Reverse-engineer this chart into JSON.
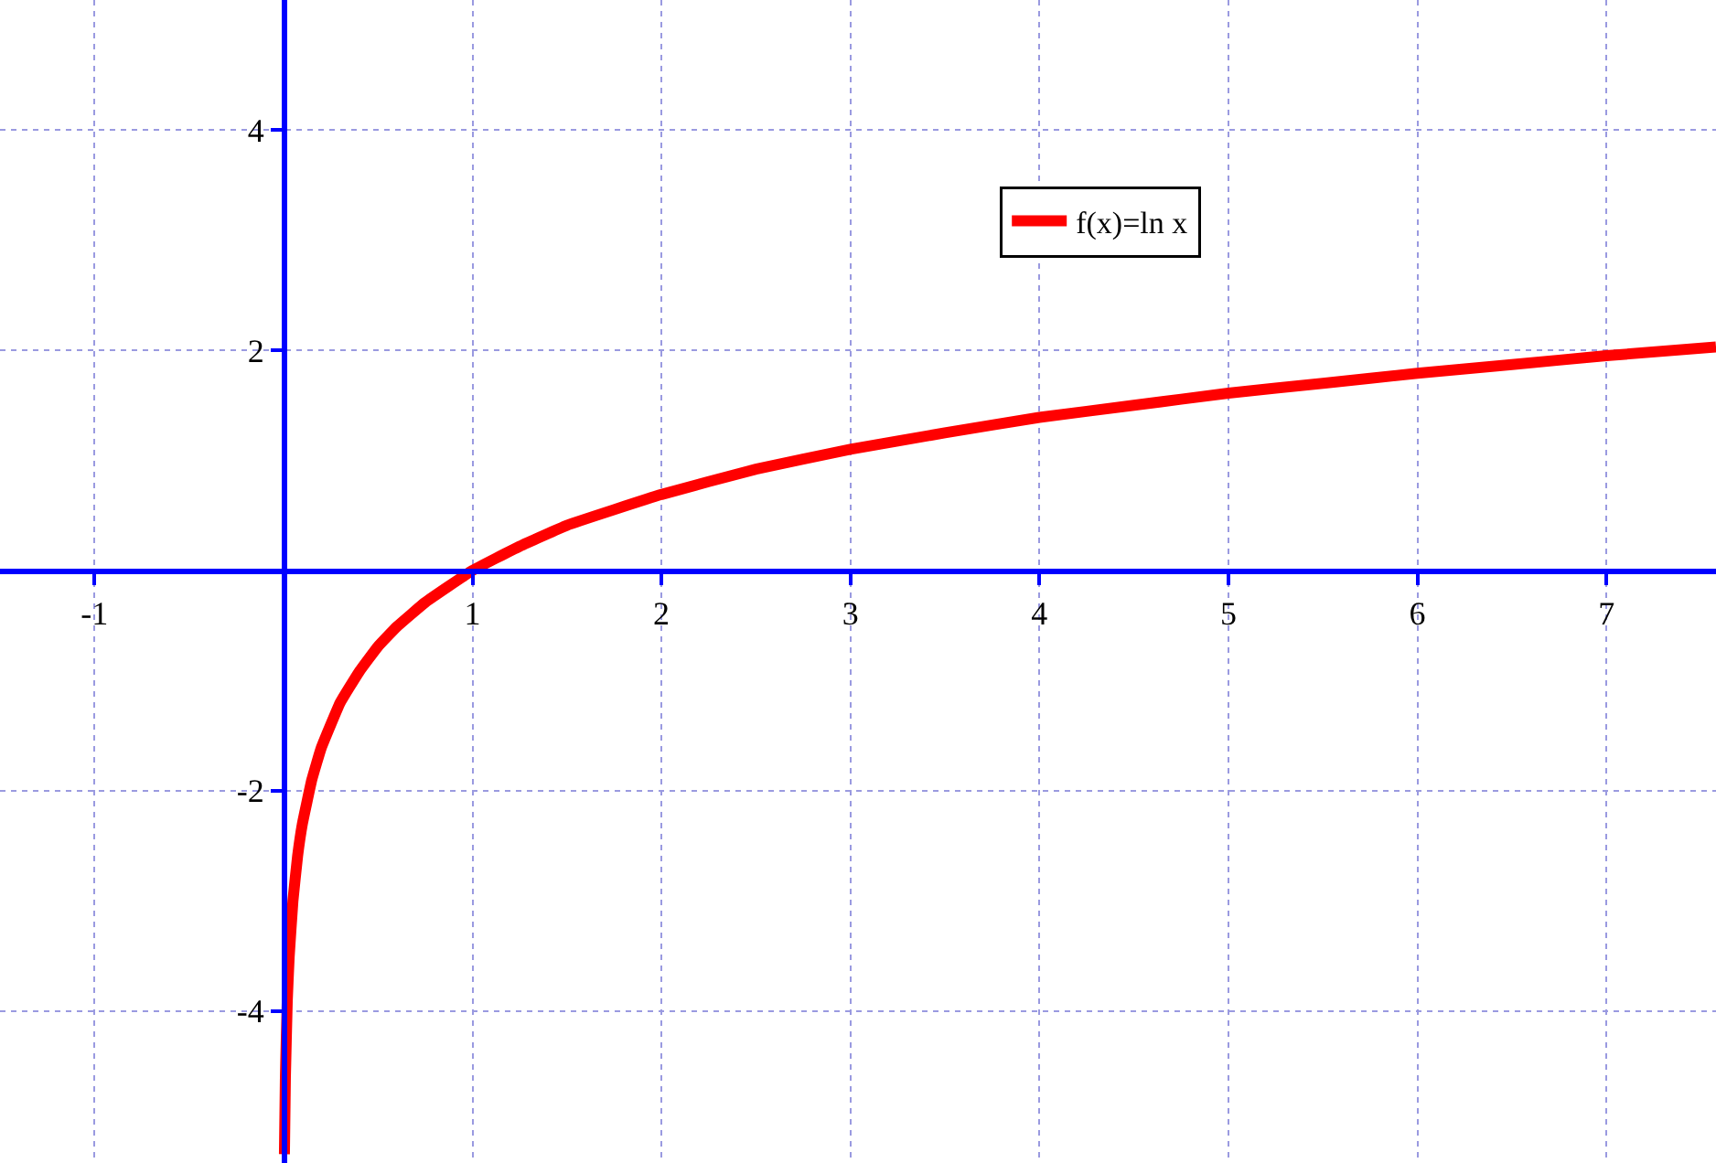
{
  "chart_data": {
    "type": "line",
    "legend": "top right",
    "grid": true,
    "marker": "none",
    "line_style": "solid",
    "xlim": [
      -1.5,
      7.58
    ],
    "ylim": [
      -5.38,
      5.18
    ],
    "xticks": [
      -1,
      1,
      2,
      3,
      4,
      5,
      6,
      7
    ],
    "yticks": [
      -4,
      -2,
      2,
      4
    ],
    "series": [
      {
        "name": "f(x)=ln x",
        "color": "#ff0000",
        "x": [
          0.005,
          0.01,
          0.02,
          0.03,
          0.05,
          0.075,
          0.1,
          0.15,
          0.2,
          0.3,
          0.4,
          0.5,
          0.6,
          0.75,
          1,
          1.25,
          1.5,
          2,
          2.5,
          3,
          3.5,
          4,
          4.5,
          5,
          5.5,
          6,
          6.5,
          7,
          7.58
        ],
        "values": [
          -5.3,
          -4.61,
          -3.91,
          -3.51,
          -3.0,
          -2.59,
          -2.3,
          -1.9,
          -1.61,
          -1.2,
          -0.92,
          -0.69,
          -0.51,
          -0.29,
          0,
          0.22,
          0.41,
          0.69,
          0.92,
          1.1,
          1.25,
          1.39,
          1.5,
          1.61,
          1.7,
          1.79,
          1.87,
          1.95,
          2.03
        ]
      }
    ]
  }
}
